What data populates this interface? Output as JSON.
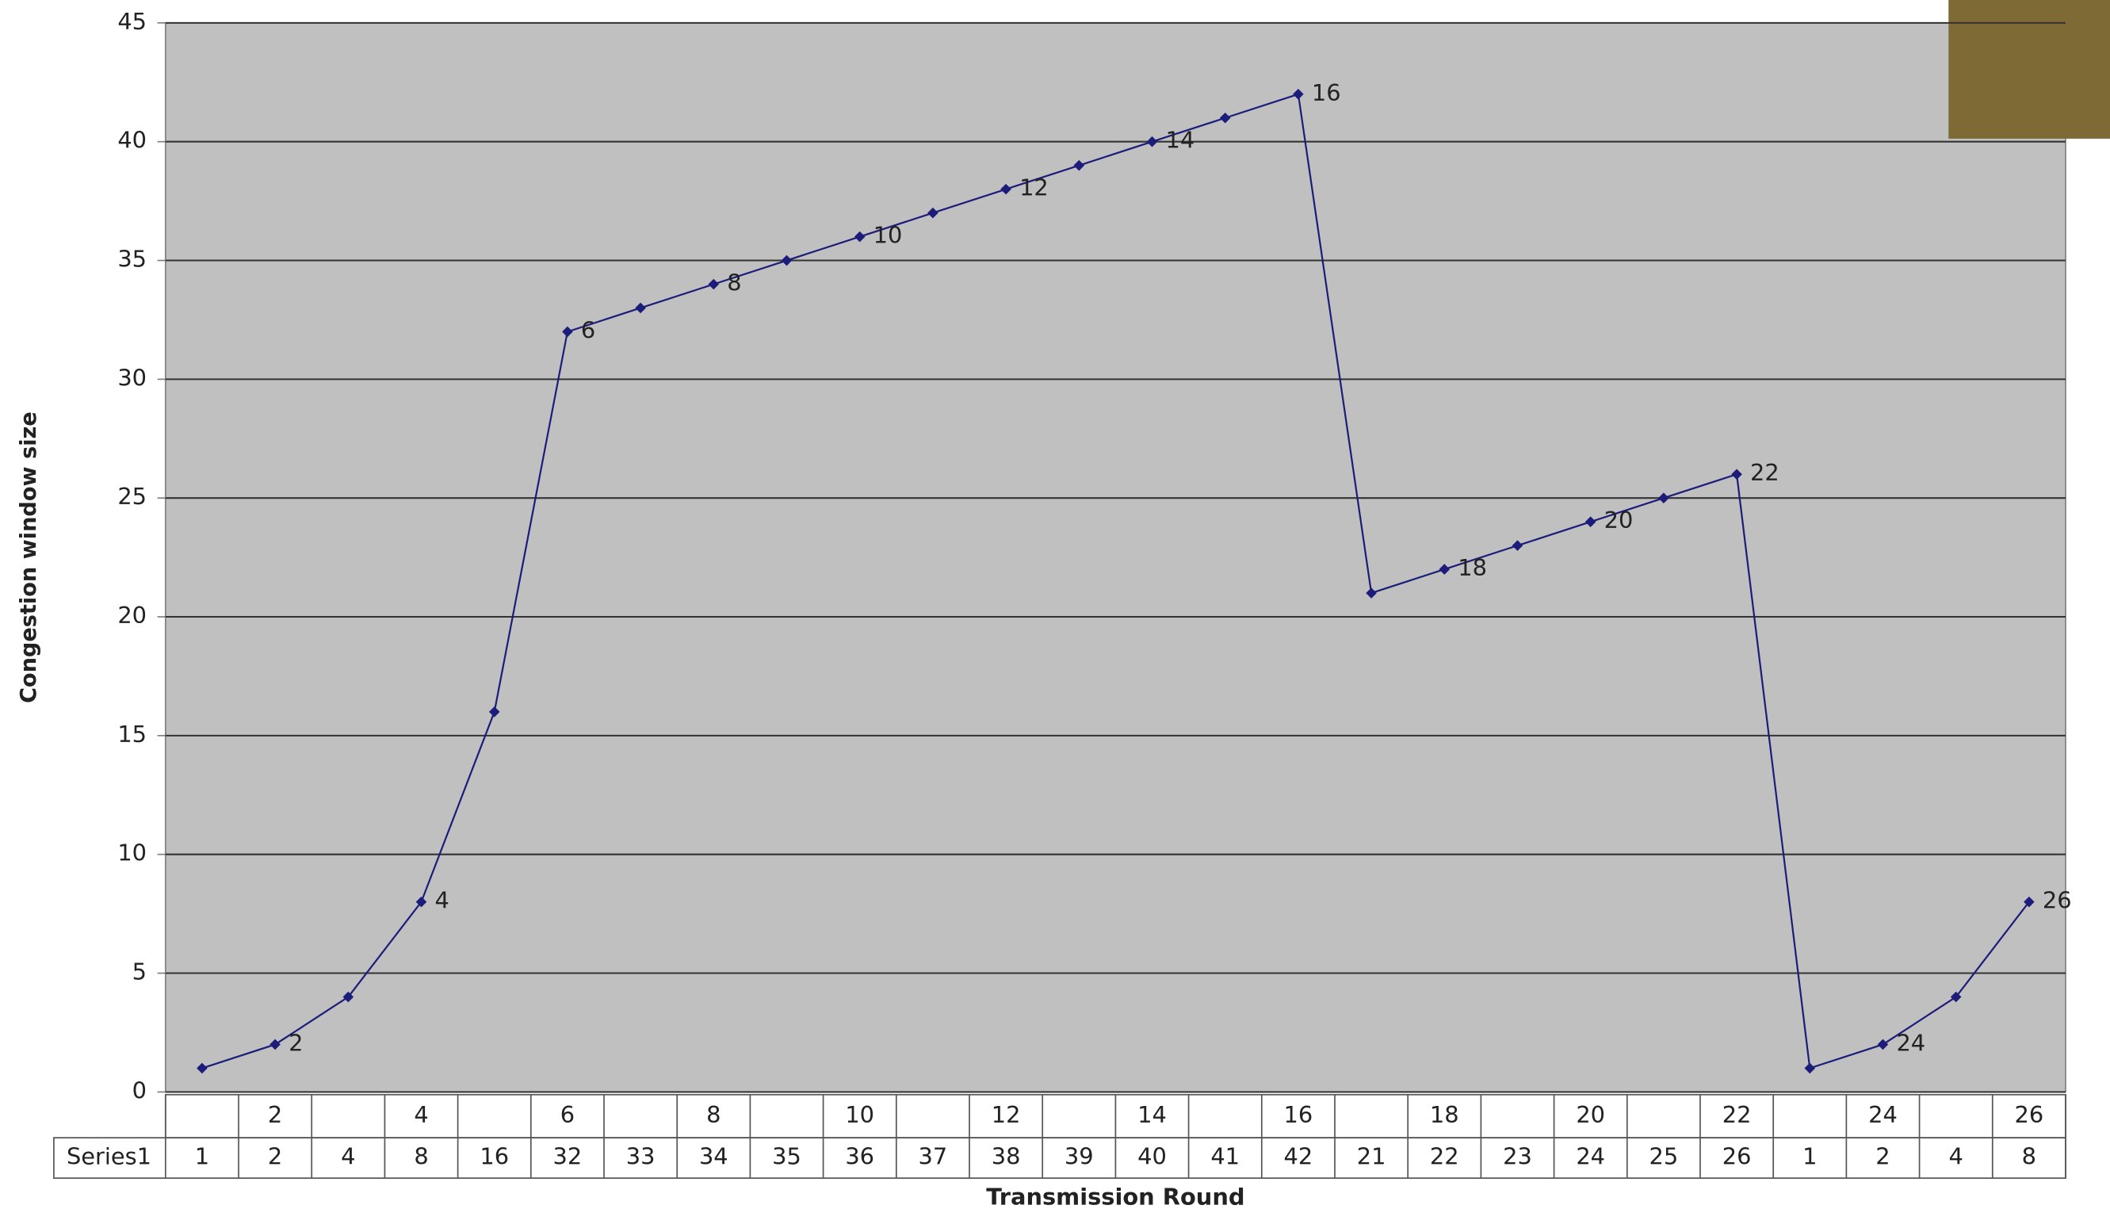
{
  "chart_data": {
    "type": "line",
    "y_label": "Congestion window size",
    "x_label": "Transmission Round",
    "categories": [
      null,
      "2",
      null,
      "4",
      null,
      "6",
      null,
      "8",
      null,
      "10",
      null,
      "12",
      null,
      "14",
      null,
      "16",
      null,
      "18",
      null,
      "20",
      null,
      "22",
      null,
      "24",
      null,
      "26"
    ],
    "series": [
      {
        "name": "Series1",
        "color": "#1c1c7a",
        "values": [
          1,
          2,
          4,
          8,
          16,
          32,
          33,
          34,
          35,
          36,
          37,
          38,
          39,
          40,
          41,
          42,
          21,
          22,
          23,
          24,
          25,
          26,
          1,
          2,
          4,
          8
        ]
      }
    ],
    "ylim": [
      0,
      45
    ],
    "yticks": [
      0,
      5,
      10,
      15,
      20,
      25,
      30,
      35,
      40,
      45
    ],
    "grid": true
  }
}
